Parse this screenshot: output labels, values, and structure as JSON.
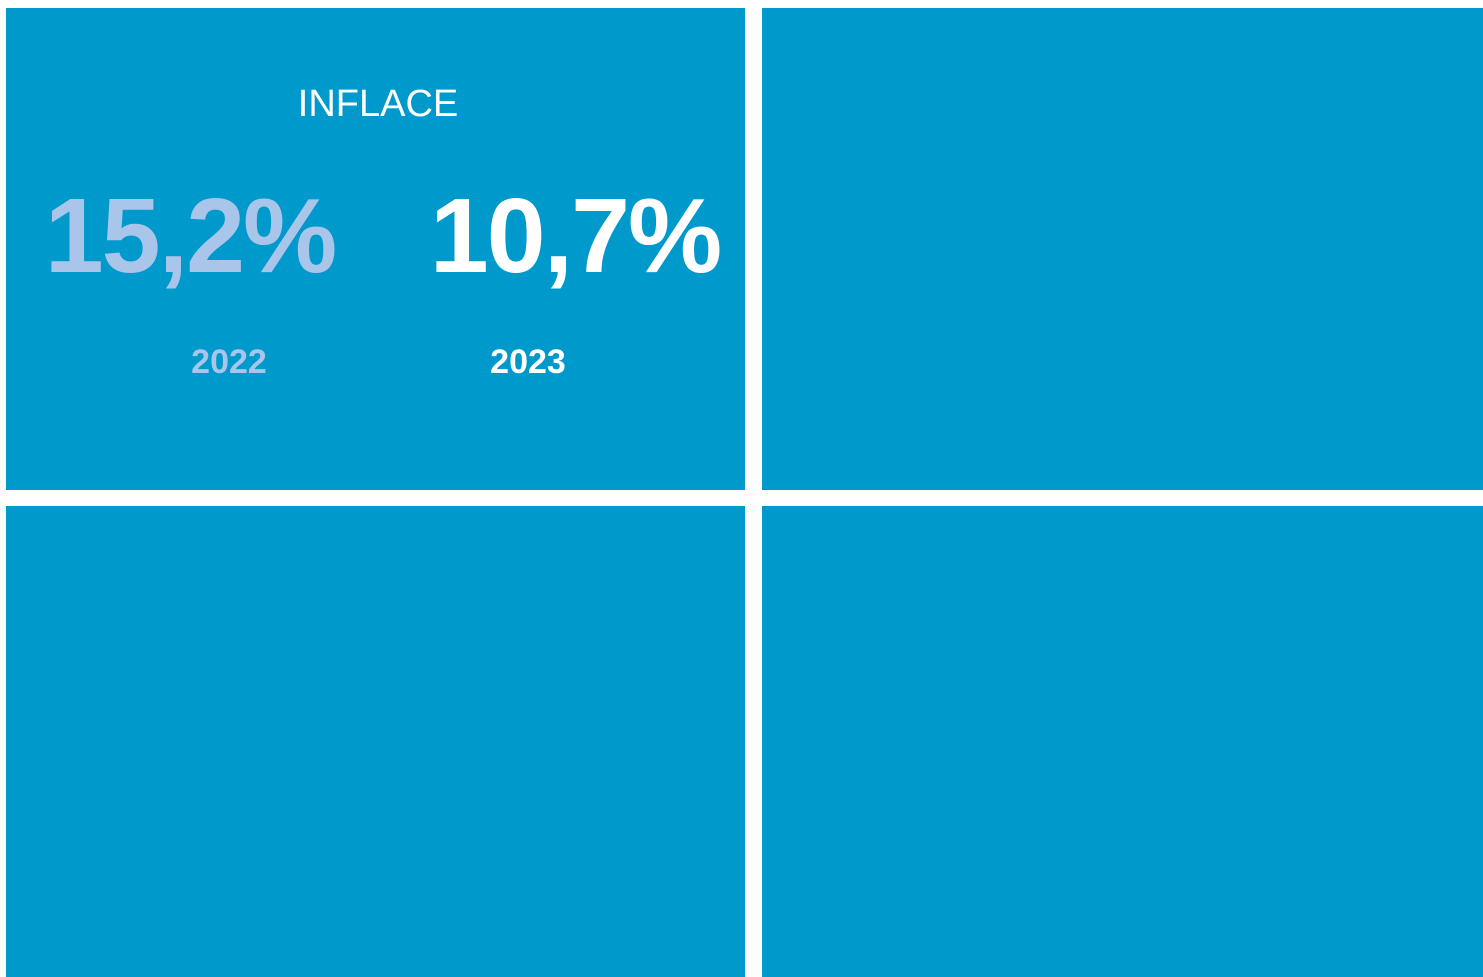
{
  "tile": {
    "title": "INFLACE",
    "items": [
      {
        "value": "15,2%",
        "year": "2022"
      },
      {
        "value": "10,7%",
        "year": "2023"
      }
    ]
  }
}
